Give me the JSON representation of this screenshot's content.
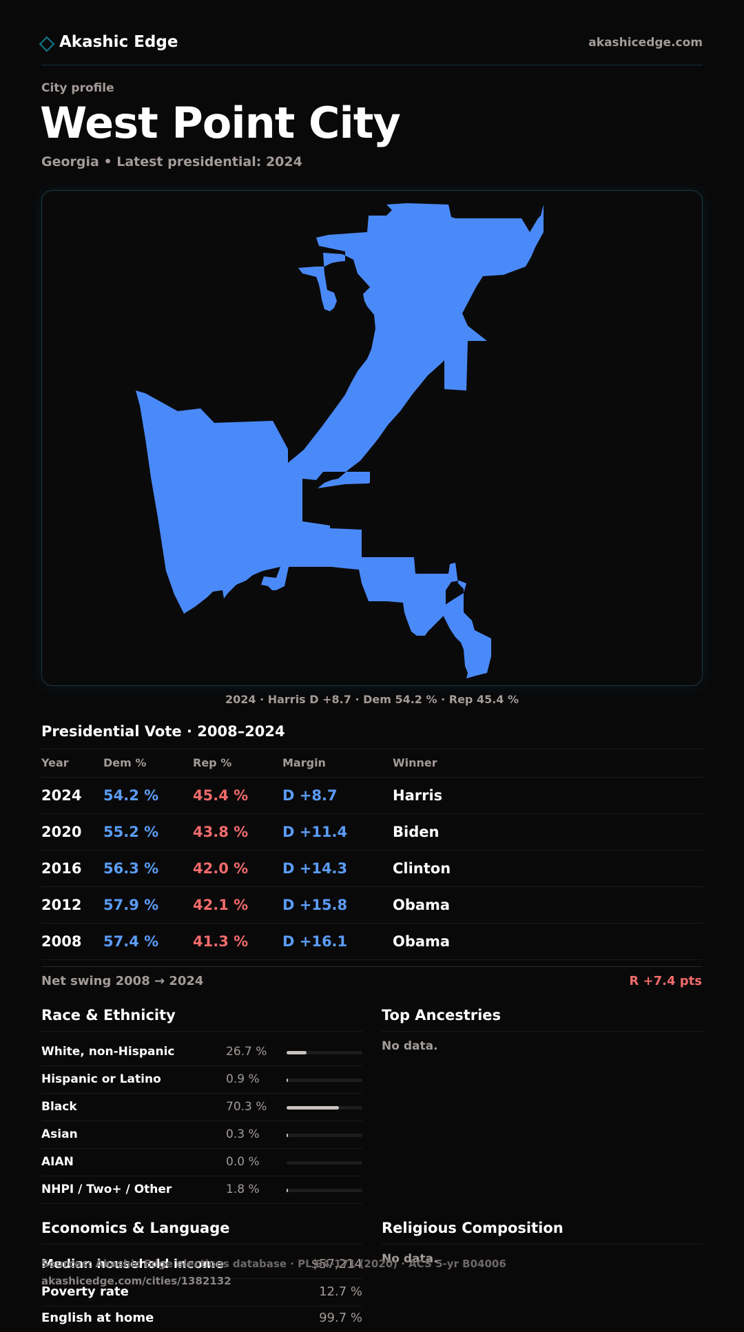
{
  "header": {
    "brand": "Akashic Edge",
    "site": "akashicedge.com",
    "brand_icon": "diamond-icon"
  },
  "profile": {
    "kicker": "City profile",
    "title": "West Point City",
    "subtitle": "Georgia • Latest presidential: 2024"
  },
  "map": {
    "fill_color": "#4a8af8",
    "caption": "2024 · Harris D +8.7 · Dem 54.2 % · Rep 45.4 %"
  },
  "vote": {
    "title": "Presidential Vote · 2008–2024",
    "columns": [
      "Year",
      "Dem %",
      "Rep %",
      "Margin",
      "Winner"
    ],
    "rows": [
      {
        "year": "2024",
        "dem": "54.2 %",
        "rep": "45.4 %",
        "margin": "D +8.7",
        "winner": "Harris"
      },
      {
        "year": "2020",
        "dem": "55.2 %",
        "rep": "43.8 %",
        "margin": "D +11.4",
        "winner": "Biden"
      },
      {
        "year": "2016",
        "dem": "56.3 %",
        "rep": "42.0 %",
        "margin": "D +14.3",
        "winner": "Clinton"
      },
      {
        "year": "2012",
        "dem": "57.9 %",
        "rep": "42.1 %",
        "margin": "D +15.8",
        "winner": "Obama"
      },
      {
        "year": "2008",
        "dem": "57.4 %",
        "rep": "41.3 %",
        "margin": "D +16.1",
        "winner": "Obama"
      }
    ],
    "swing_label": "Net swing 2008 → 2024",
    "swing_value": "R +7.4 pts"
  },
  "colors": {
    "dem": "#5b9cf5",
    "rep": "#f06b6b"
  },
  "race": {
    "title": "Race & Ethnicity",
    "rows": [
      {
        "label": "White, non-Hispanic",
        "pct": "26.7 %",
        "value": 26.7
      },
      {
        "label": "Hispanic or Latino",
        "pct": "0.9 %",
        "value": 0.9
      },
      {
        "label": "Black",
        "pct": "70.3 %",
        "value": 70.3
      },
      {
        "label": "Asian",
        "pct": "0.3 %",
        "value": 0.3
      },
      {
        "label": "AIAN",
        "pct": "0.0 %",
        "value": 0.0
      },
      {
        "label": "NHPI / Two+ / Other",
        "pct": "1.8 %",
        "value": 1.8
      }
    ]
  },
  "ancestries": {
    "title": "Top Ancestries",
    "empty": "No data."
  },
  "economics": {
    "title": "Economics & Language",
    "rows": [
      {
        "label": "Median household income",
        "value": "$57,214"
      },
      {
        "label": "Poverty rate",
        "value": "12.7 %"
      },
      {
        "label": "English at home",
        "value": "99.7 %"
      }
    ]
  },
  "religion": {
    "title": "Religious Composition",
    "empty": "No data."
  },
  "footer": {
    "sources": "Sources: Akashic Edge elections database · PL 94-171 (2020) · ACS 5-yr B04006",
    "url": "akashicedge.com/cities/1382132"
  }
}
